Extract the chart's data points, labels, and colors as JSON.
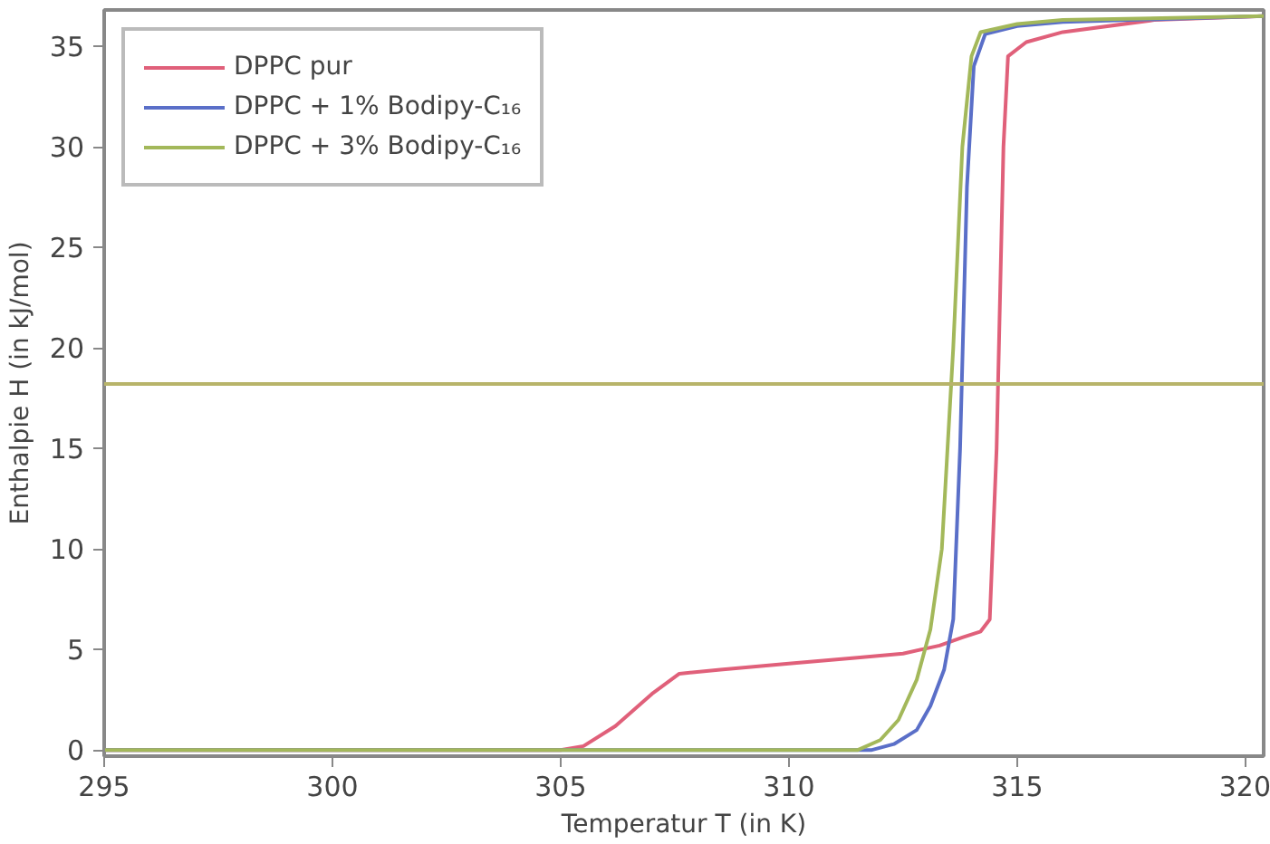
{
  "chart_data": {
    "type": "line",
    "xlabel": "Temperatur T (in K)",
    "ylabel": "Enthalpie H (in kJ/mol)",
    "xlim": [
      295,
      320.4
    ],
    "ylim": [
      -0.3,
      36.8
    ],
    "xticks": [
      295,
      300,
      305,
      310,
      315,
      320
    ],
    "yticks": [
      0,
      5,
      10,
      15,
      20,
      25,
      30,
      35
    ],
    "grid": false,
    "legend": "top left",
    "line_style": "solid",
    "marker": "none",
    "series": [
      {
        "name": "DPPC pur",
        "color": "#e0607a",
        "x": [
          295,
          300,
          305,
          305.5,
          306.2,
          307,
          307.6,
          308.5,
          310,
          311.5,
          312.5,
          313.3,
          313.8,
          314.2,
          314.4,
          314.55,
          314.7,
          314.8,
          315.2,
          316,
          318,
          320.4
        ],
        "values": [
          0,
          0,
          0,
          0.2,
          1.2,
          2.8,
          3.8,
          4,
          4.3,
          4.6,
          4.8,
          5.2,
          5.6,
          5.9,
          6.5,
          15,
          30,
          34.5,
          35.2,
          35.7,
          36.3,
          36.5
        ]
      },
      {
        "name": "DPPC + 1% Bodipy-C₁₆",
        "color": "#5a6fc8",
        "x": [
          295,
          305,
          311.8,
          312.3,
          312.8,
          313.1,
          313.4,
          313.6,
          313.75,
          313.9,
          314.05,
          314.3,
          315,
          316,
          320.4
        ],
        "values": [
          0,
          0,
          0,
          0.3,
          1,
          2.2,
          4,
          6.5,
          15,
          28,
          34,
          35.6,
          36,
          36.2,
          36.5
        ]
      },
      {
        "name": "DPPC + 3% Bodipy-C₁₆",
        "color": "#a3b85a",
        "x": [
          295,
          305,
          311.5,
          312,
          312.4,
          312.8,
          313.1,
          313.35,
          313.6,
          313.8,
          314.0,
          314.2,
          315,
          316,
          320.4
        ],
        "values": [
          0,
          0,
          0,
          0.5,
          1.5,
          3.5,
          6,
          10,
          20,
          30,
          34.5,
          35.7,
          36.1,
          36.3,
          36.5
        ]
      }
    ],
    "ref_lines": [
      {
        "axis": "y",
        "value": 18.2,
        "color": "#b8b46a",
        "line_style": "solid"
      }
    ]
  }
}
